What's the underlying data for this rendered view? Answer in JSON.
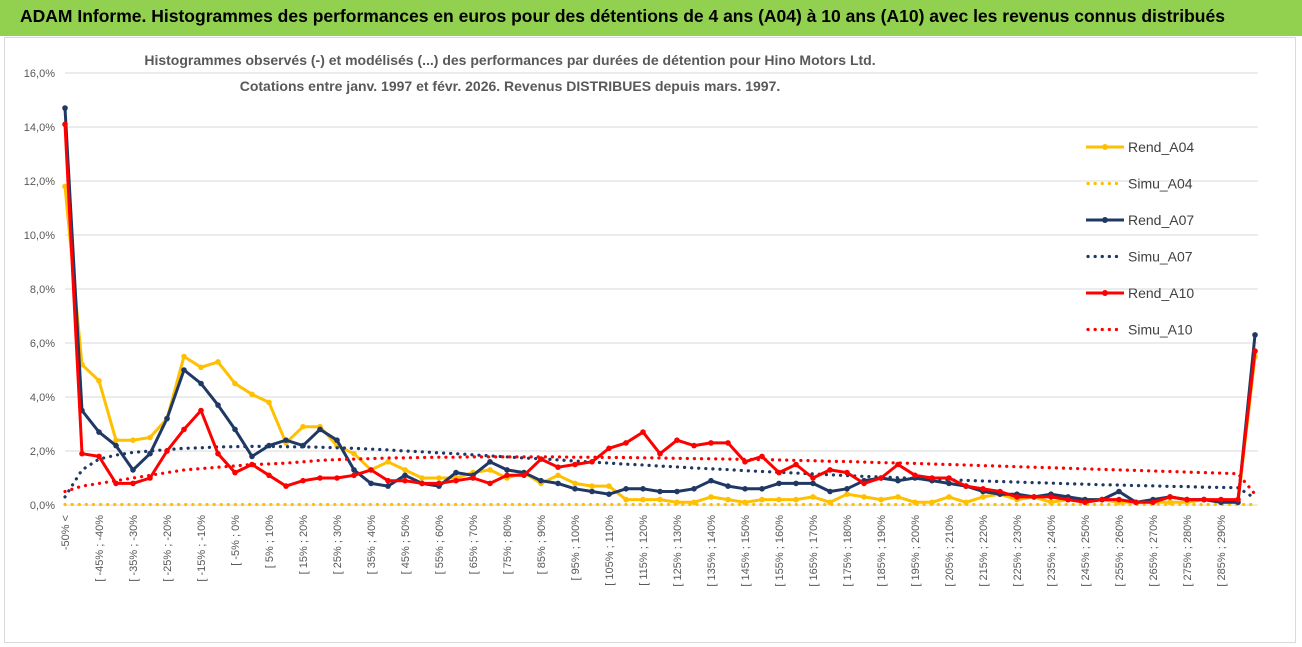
{
  "header": {
    "title": "ADAM Informe. Histogrammes des performances en euros pour des détentions de 4 ans (A04) à 10 ans (A10) avec les revenus connus distribués"
  },
  "colors": {
    "header_bg": "#92d050",
    "a04": "#ffc000",
    "a07": "#1f3864",
    "a10": "#ff0000",
    "grid": "#d9d9d9",
    "text": "#595959"
  },
  "chart_data": {
    "type": "line",
    "title_line1": "Histogrammes observés (-) et modélisés (...)  des performances par durées de détention pour Hino Motors Ltd.",
    "title_line2": "Cotations entre janv. 1997 et févr.  2026. Revenus DISTRIBUES depuis mars. 1997.",
    "xlabel": "",
    "ylabel": "",
    "ylim": [
      0,
      16
    ],
    "y_ticks": [
      "0,0%",
      "2,0%",
      "4,0%",
      "6,0%",
      "8,0%",
      "10,0%",
      "12,0%",
      "14,0%",
      "16,0%"
    ],
    "grid": true,
    "legend_position": "right",
    "x_tick_labels": [
      "-50% <",
      "[ -45% ; -40%",
      "[ -35% ; -30%",
      "[ -25% ; -20%",
      "[ -15% ; -10%",
      "[ -5% ; 0%",
      "[ 5% ; 10%",
      "[ 15% ; 20%",
      "[ 25% ; 30%",
      "[ 35% ; 40%",
      "[ 45% ; 50%",
      "[ 55% ; 60%",
      "[ 65% ; 70%",
      "[ 75% ; 80%",
      "[ 85% ; 90%",
      "[ 95% ; 100%",
      "[ 105% ; 110%",
      "[ 115% ; 120%",
      "[ 125% ; 130%",
      "[ 135% ; 140%",
      "[ 145% ; 150%",
      "[ 155% ; 160%",
      "[ 165% ; 170%",
      "[ 175% ; 180%",
      "[ 185% ; 190%",
      "[ 195% ; 200%",
      "[ 205% ; 210%",
      "[ 215% ; 220%",
      "[ 225% ; 230%",
      "[ 235% ; 240%",
      "[ 245% ; 250%",
      "[ 255% ; 260%",
      "[ 265% ; 270%",
      "[ 275% ; 280%",
      "[ 285% ; 290%"
    ],
    "n_bins": 71,
    "series": [
      {
        "name": "Rend_A04",
        "style": "solid",
        "color": "#ffc000",
        "values": [
          11.8,
          5.2,
          4.6,
          2.4,
          2.4,
          2.5,
          3.2,
          5.5,
          5.1,
          5.3,
          4.5,
          4.1,
          3.8,
          2.3,
          2.9,
          2.9,
          2.2,
          1.9,
          1.3,
          1.6,
          1.3,
          1.0,
          1.0,
          1.0,
          1.2,
          1.3,
          1.0,
          1.2,
          0.8,
          1.1,
          0.8,
          0.7,
          0.7,
          0.2,
          0.2,
          0.2,
          0.1,
          0.1,
          0.3,
          0.2,
          0.1,
          0.2,
          0.2,
          0.2,
          0.3,
          0.1,
          0.4,
          0.3,
          0.2,
          0.3,
          0.1,
          0.1,
          0.3,
          0.1,
          0.3,
          0.4,
          0.2,
          0.3,
          0.1,
          0.2,
          0.2,
          0.2,
          0.1,
          0.1,
          0.1,
          0.1,
          0.1,
          0.2,
          0.1,
          0.1,
          5.5
        ]
      },
      {
        "name": "Simu_A04",
        "style": "dotted",
        "color": "#ffc000",
        "values": [
          0.02,
          0.02,
          0.02,
          0.02,
          0.02,
          0.02,
          0.02,
          0.02,
          0.02,
          0.02,
          0.02,
          0.02,
          0.02,
          0.02,
          0.02,
          0.02,
          0.02,
          0.02,
          0.02,
          0.02,
          0.02,
          0.02,
          0.02,
          0.02,
          0.02,
          0.02,
          0.02,
          0.02,
          0.02,
          0.02,
          0.02,
          0.02,
          0.02,
          0.02,
          0.02,
          0.02,
          0.02,
          0.02,
          0.02,
          0.02,
          0.02,
          0.02,
          0.02,
          0.02,
          0.02,
          0.02,
          0.02,
          0.02,
          0.02,
          0.02,
          0.02,
          0.02,
          0.02,
          0.02,
          0.02,
          0.02,
          0.02,
          0.02,
          0.02,
          0.02,
          0.02,
          0.02,
          0.02,
          0.02,
          0.02,
          0.02,
          0.02,
          0.02,
          0.02,
          0.02,
          0.02
        ]
      },
      {
        "name": "Rend_A07",
        "style": "solid",
        "color": "#1f3864",
        "values": [
          14.7,
          3.5,
          2.7,
          2.2,
          1.3,
          1.9,
          3.2,
          5.0,
          4.5,
          3.7,
          2.8,
          1.8,
          2.2,
          2.4,
          2.2,
          2.8,
          2.4,
          1.3,
          0.8,
          0.7,
          1.1,
          0.8,
          0.7,
          1.2,
          1.1,
          1.6,
          1.3,
          1.2,
          0.9,
          0.8,
          0.6,
          0.5,
          0.4,
          0.6,
          0.6,
          0.5,
          0.5,
          0.6,
          0.9,
          0.7,
          0.6,
          0.6,
          0.8,
          0.8,
          0.8,
          0.5,
          0.6,
          0.9,
          1.0,
          0.9,
          1.0,
          0.9,
          0.8,
          0.7,
          0.5,
          0.4,
          0.4,
          0.3,
          0.4,
          0.3,
          0.2,
          0.2,
          0.5,
          0.1,
          0.2,
          0.3,
          0.2,
          0.2,
          0.1,
          0.1,
          6.3
        ]
      },
      {
        "name": "Simu_A07",
        "style": "dotted",
        "color": "#1f3864",
        "values": [
          0.3,
          1.3,
          1.7,
          1.85,
          1.95,
          2.0,
          2.05,
          2.1,
          2.12,
          2.15,
          2.16,
          2.17,
          2.17,
          2.16,
          2.15,
          2.14,
          2.12,
          2.1,
          2.07,
          2.04,
          2.0,
          1.97,
          1.93,
          1.9,
          1.86,
          1.82,
          1.78,
          1.74,
          1.71,
          1.67,
          1.63,
          1.59,
          1.55,
          1.51,
          1.48,
          1.44,
          1.41,
          1.37,
          1.34,
          1.31,
          1.27,
          1.24,
          1.21,
          1.18,
          1.15,
          1.12,
          1.09,
          1.06,
          1.04,
          1.01,
          0.98,
          0.96,
          0.93,
          0.91,
          0.89,
          0.87,
          0.85,
          0.83,
          0.81,
          0.79,
          0.77,
          0.75,
          0.74,
          0.72,
          0.71,
          0.69,
          0.68,
          0.66,
          0.65,
          0.64,
          0.25
        ]
      },
      {
        "name": "Rend_A10",
        "style": "solid",
        "color": "#ff0000",
        "values": [
          14.1,
          1.9,
          1.8,
          0.8,
          0.8,
          1.0,
          2.0,
          2.8,
          3.5,
          1.9,
          1.2,
          1.5,
          1.1,
          0.7,
          0.9,
          1.0,
          1.0,
          1.1,
          1.3,
          0.9,
          0.9,
          0.8,
          0.8,
          0.9,
          1.0,
          0.8,
          1.1,
          1.1,
          1.7,
          1.4,
          1.5,
          1.6,
          2.1,
          2.3,
          2.7,
          1.9,
          2.4,
          2.2,
          2.3,
          2.3,
          1.6,
          1.8,
          1.2,
          1.5,
          1.0,
          1.3,
          1.2,
          0.8,
          1.0,
          1.5,
          1.1,
          1.0,
          1.0,
          0.7,
          0.6,
          0.5,
          0.3,
          0.3,
          0.3,
          0.2,
          0.1,
          0.2,
          0.2,
          0.1,
          0.1,
          0.3,
          0.2,
          0.2,
          0.2,
          0.2,
          5.7
        ]
      },
      {
        "name": "Simu_A10",
        "style": "dotted",
        "color": "#ff0000",
        "values": [
          0.5,
          0.7,
          0.8,
          0.9,
          1.0,
          1.1,
          1.2,
          1.3,
          1.35,
          1.4,
          1.45,
          1.5,
          1.52,
          1.55,
          1.6,
          1.65,
          1.68,
          1.7,
          1.72,
          1.74,
          1.75,
          1.76,
          1.77,
          1.77,
          1.78,
          1.78,
          1.78,
          1.78,
          1.78,
          1.78,
          1.77,
          1.77,
          1.76,
          1.76,
          1.75,
          1.74,
          1.73,
          1.72,
          1.71,
          1.7,
          1.69,
          1.68,
          1.67,
          1.65,
          1.64,
          1.62,
          1.61,
          1.59,
          1.57,
          1.56,
          1.54,
          1.52,
          1.5,
          1.48,
          1.46,
          1.44,
          1.42,
          1.4,
          1.38,
          1.36,
          1.34,
          1.32,
          1.3,
          1.28,
          1.26,
          1.24,
          1.22,
          1.2,
          1.18,
          1.16,
          0.4
        ]
      }
    ]
  }
}
